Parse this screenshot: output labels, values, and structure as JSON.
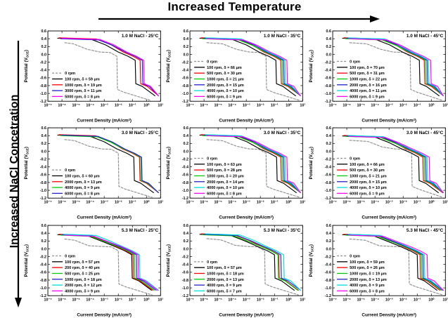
{
  "header": {
    "top_label": "Increased Temperature",
    "left_label": "Increased NaCl Concetration"
  },
  "axes": {
    "xlabel": "Current Density (mA/cm²)",
    "ylabel_pre": "Potential (V",
    "ylabel_sub": "SCE",
    "ylabel_post": ")",
    "x_tick_labels": [
      "10⁻⁷",
      "10⁻⁶",
      "10⁻⁵",
      "10⁻⁴",
      "10⁻³",
      "10⁻²",
      "10⁻¹",
      "10⁰",
      "10¹"
    ],
    "x_tick_exp": [
      -7,
      -6,
      -5,
      -4,
      -3,
      -2,
      -1,
      0,
      1
    ],
    "y_ticks": [
      0.6,
      0.4,
      0.2,
      0.0,
      -0.2,
      -0.4,
      -0.6,
      -0.8,
      -1.0,
      -1.2
    ],
    "xlim_log10": [
      -7,
      1
    ],
    "ylim": [
      -1.2,
      0.6
    ],
    "grid": false,
    "legend_position": "lower-left"
  },
  "chart_data": [
    {
      "type": "line",
      "title": "1.0 M NaCl - 25°C",
      "e_top": 0.4,
      "series": [
        {
          "label": "0 rpm",
          "rpm": 0,
          "color": "#909090",
          "dash": true,
          "drop_log10": -2.1
        },
        {
          "label": "100 rpm, δ = 59 μm",
          "rpm": 100,
          "delta_um": 59,
          "color": "#000000",
          "dash": false,
          "drop_log10": -0.8
        },
        {
          "label": "1000 rpm, δ = 19 μm",
          "rpm": 1000,
          "delta_um": 19,
          "color": "#ff0000",
          "dash": false,
          "drop_log10": -0.45
        },
        {
          "label": "3000 rpm, δ = 11 μm",
          "rpm": 3000,
          "delta_um": 11,
          "color": "#2222cc",
          "dash": false,
          "drop_log10": -0.3
        },
        {
          "label": "5000 rpm, δ = 8 μm",
          "rpm": 5000,
          "delta_um": 8,
          "color": "#ff00ff",
          "dash": false,
          "drop_log10": -0.2
        }
      ]
    },
    {
      "type": "line",
      "title": "1.0 M NaCl - 35°C",
      "e_top": 0.4,
      "series": [
        {
          "label": "0 rpm",
          "rpm": 0,
          "color": "#909090",
          "dash": true,
          "drop_log10": -1.6
        },
        {
          "label": "100 rpm, δ = 66 μm",
          "rpm": 100,
          "delta_um": 66,
          "color": "#000000",
          "dash": false,
          "drop_log10": -0.9
        },
        {
          "label": "500 rpm, δ = 30 μm",
          "rpm": 500,
          "delta_um": 30,
          "color": "#ff0000",
          "dash": false,
          "drop_log10": -0.55
        },
        {
          "label": "1000 rpm, δ = 21 μm",
          "rpm": 1000,
          "delta_um": 21,
          "color": "#00cc00",
          "dash": false,
          "drop_log10": -0.45
        },
        {
          "label": "2000 rpm, δ = 15 μm",
          "rpm": 2000,
          "delta_um": 15,
          "color": "#2222cc",
          "dash": false,
          "drop_log10": -0.35
        },
        {
          "label": "4000 rpm, δ = 10 μm",
          "rpm": 4000,
          "delta_um": 10,
          "color": "#00dddd",
          "dash": false,
          "drop_log10": -0.25
        },
        {
          "label": "6000 rpm, δ = 9 μm",
          "rpm": 6000,
          "delta_um": 9,
          "color": "#ff00ff",
          "dash": false,
          "drop_log10": -0.12
        }
      ]
    },
    {
      "type": "line",
      "title": "1.0 M NaCl - 45°C",
      "e_top": 0.4,
      "series": [
        {
          "label": "0 rpm",
          "rpm": 0,
          "color": "#909090",
          "dash": true,
          "drop_log10": -1.5
        },
        {
          "label": "100 rpm, δ = 70 μm",
          "rpm": 100,
          "delta_um": 70,
          "color": "#000000",
          "dash": false,
          "drop_log10": -0.85
        },
        {
          "label": "500 rpm, δ = 31 μm",
          "rpm": 500,
          "delta_um": 31,
          "color": "#ff0000",
          "dash": false,
          "drop_log10": -0.5
        },
        {
          "label": "1000 rpm, δ = 22 μm",
          "rpm": 1000,
          "delta_um": 22,
          "color": "#00cc00",
          "dash": false,
          "drop_log10": -0.4
        },
        {
          "label": "2000 rpm, δ = 16 μm",
          "rpm": 2000,
          "delta_um": 16,
          "color": "#2222cc",
          "dash": false,
          "drop_log10": -0.3
        },
        {
          "label": "4000 rpm, δ = 11 μm",
          "rpm": 4000,
          "delta_um": 11,
          "color": "#00dddd",
          "dash": false,
          "drop_log10": -0.2
        },
        {
          "label": "6000 rpm, δ = 9 μm",
          "rpm": 6000,
          "delta_um": 9,
          "color": "#ff00ff",
          "dash": false,
          "drop_log10": -0.05
        }
      ]
    },
    {
      "type": "line",
      "title": "3.0 M NaCl - 25°C",
      "e_top": 0.4,
      "series": [
        {
          "label": "0 rpm",
          "rpm": 0,
          "color": "#909090",
          "dash": true,
          "drop_log10": -2.0
        },
        {
          "label": "100 rpm, δ = 60 μm",
          "rpm": 100,
          "delta_um": 60,
          "color": "#000000",
          "dash": false,
          "drop_log10": -0.9
        },
        {
          "label": "2000 rpm, δ = 13 μm",
          "rpm": 2000,
          "delta_um": 13,
          "color": "#ff0000",
          "dash": false,
          "drop_log10": -0.5
        },
        {
          "label": "4000 rpm, δ = 9 μm",
          "rpm": 4000,
          "delta_um": 9,
          "color": "#00cc00",
          "dash": false,
          "drop_log10": -0.42
        },
        {
          "label": "6000 rpm, δ = 8 μm",
          "rpm": 6000,
          "delta_um": 8,
          "color": "#2222cc",
          "dash": false,
          "drop_log10": -0.35
        }
      ]
    },
    {
      "type": "line",
      "title": "3.0 M NaCl - 35°C",
      "e_top": 0.4,
      "series": [
        {
          "label": "0 rpm",
          "rpm": 0,
          "color": "#909090",
          "dash": true,
          "drop_log10": -1.6
        },
        {
          "label": "100 rpm, δ = 63 μm",
          "rpm": 100,
          "delta_um": 63,
          "color": "#000000",
          "dash": false,
          "drop_log10": -0.85
        },
        {
          "label": "500 rpm, δ = 28 μm",
          "rpm": 500,
          "delta_um": 28,
          "color": "#ff0000",
          "dash": false,
          "drop_log10": -0.55
        },
        {
          "label": "1000 rpm, δ = 20 μm",
          "rpm": 1000,
          "delta_um": 20,
          "color": "#00cc00",
          "dash": false,
          "drop_log10": -0.45
        },
        {
          "label": "2000 rpm, δ = 14 μm",
          "rpm": 2000,
          "delta_um": 14,
          "color": "#2222cc",
          "dash": false,
          "drop_log10": -0.35
        },
        {
          "label": "4000 rpm, δ = 10 μm",
          "rpm": 4000,
          "delta_um": 10,
          "color": "#00dddd",
          "dash": false,
          "drop_log10": -0.25
        },
        {
          "label": "6000 rpm, δ = 8 μm",
          "rpm": 6000,
          "delta_um": 8,
          "color": "#ff00ff",
          "dash": false,
          "drop_log10": -0.12
        }
      ]
    },
    {
      "type": "line",
      "title": "3.0 M NaCl - 45°C",
      "e_top": 0.38,
      "series": [
        {
          "label": "0 rpm",
          "rpm": 0,
          "color": "#909090",
          "dash": true,
          "drop_log10": -1.4
        },
        {
          "label": "100 rpm, δ = 66 μm",
          "rpm": 100,
          "delta_um": 66,
          "color": "#000000",
          "dash": false,
          "drop_log10": -0.9
        },
        {
          "label": "500 rpm, δ = 30 μm",
          "rpm": 500,
          "delta_um": 30,
          "color": "#ff0000",
          "dash": false,
          "drop_log10": -0.6
        },
        {
          "label": "1000 rpm, δ = 21 μm",
          "rpm": 1000,
          "delta_um": 21,
          "color": "#00cc00",
          "dash": false,
          "drop_log10": -0.5
        },
        {
          "label": "2000 rpm, δ = 15 μm",
          "rpm": 2000,
          "delta_um": 15,
          "color": "#2222cc",
          "dash": false,
          "drop_log10": -0.4
        },
        {
          "label": "4000 rpm, δ = 10 μm",
          "rpm": 4000,
          "delta_um": 10,
          "color": "#00dddd",
          "dash": false,
          "drop_log10": -0.3
        },
        {
          "label": "6000 rpm, δ = 9 μm",
          "rpm": 6000,
          "delta_um": 9,
          "color": "#ff00ff",
          "dash": false,
          "drop_log10": -0.15
        }
      ]
    },
    {
      "type": "line",
      "title": "5.3 M NaCl - 25°C",
      "e_top": 0.35,
      "series": [
        {
          "label": "0 rpm",
          "rpm": 0,
          "color": "#909090",
          "dash": true,
          "drop_log10": -2.0
        },
        {
          "label": "100 rpm, δ = 57 μm",
          "rpm": 100,
          "delta_um": 57,
          "color": "#000000",
          "dash": false,
          "drop_log10": -1.05
        },
        {
          "label": "200 rpm, δ = 40 μm",
          "rpm": 200,
          "delta_um": 40,
          "color": "#ff0000",
          "dash": false,
          "drop_log10": -0.95
        },
        {
          "label": "500 rpm, δ = 25 μm",
          "rpm": 500,
          "delta_um": 25,
          "color": "#00cc00",
          "dash": false,
          "drop_log10": -0.85
        },
        {
          "label": "1000 rpm, δ = 18 μm",
          "rpm": 1000,
          "delta_um": 18,
          "color": "#2222cc",
          "dash": false,
          "drop_log10": -0.72
        },
        {
          "label": "2000 rpm, δ = 12 μm",
          "rpm": 2000,
          "delta_um": 12,
          "color": "#00dddd",
          "dash": false,
          "drop_log10": -0.5
        },
        {
          "label": "4000 rpm, δ = 9 μm",
          "rpm": 4000,
          "delta_um": 9,
          "color": "#ff00ff",
          "dash": false,
          "drop_log10": -0.6
        }
      ]
    },
    {
      "type": "line",
      "title": "5.3 M NaCl - 35°C",
      "e_top": 0.36,
      "series": [
        {
          "label": "0 rpm",
          "rpm": 0,
          "color": "#909090",
          "dash": true,
          "drop_log10": -1.7
        },
        {
          "label": "100 rpm, δ = 57 μm",
          "rpm": 100,
          "delta_um": 57,
          "color": "#000000",
          "dash": false,
          "drop_log10": -1.0
        },
        {
          "label": "1000 rpm, δ = 18 μm",
          "rpm": 1000,
          "delta_um": 18,
          "color": "#ff0000",
          "dash": false,
          "drop_log10": -0.7
        },
        {
          "label": "2000 rpm, δ = 13 μm",
          "rpm": 2000,
          "delta_um": 13,
          "color": "#00cc00",
          "dash": false,
          "drop_log10": -0.75
        },
        {
          "label": "4000 rpm, δ = 9 μm",
          "rpm": 4000,
          "delta_um": 9,
          "color": "#2222cc",
          "dash": false,
          "drop_log10": -0.55
        },
        {
          "label": "6000 rpm, δ = 7 μm",
          "rpm": 6000,
          "delta_um": 7,
          "color": "#00dddd",
          "dash": false,
          "drop_log10": -0.35
        }
      ]
    },
    {
      "type": "line",
      "title": "5.3 M NaCl - 45°C",
      "e_top": 0.35,
      "series": [
        {
          "label": "0 rpm",
          "rpm": 0,
          "color": "#909090",
          "dash": true,
          "drop_log10": -1.6
        },
        {
          "label": "100 rpm, δ = 59 μm",
          "rpm": 100,
          "delta_um": 59,
          "color": "#000000",
          "dash": false,
          "drop_log10": -1.0
        },
        {
          "label": "500 rpm, δ = 26 μm",
          "rpm": 500,
          "delta_um": 26,
          "color": "#ff0000",
          "dash": false,
          "drop_log10": -0.8
        },
        {
          "label": "1000 rpm, δ = 19 μm",
          "rpm": 1000,
          "delta_um": 19,
          "color": "#00cc00",
          "dash": false,
          "drop_log10": -0.7
        },
        {
          "label": "2000 rpm, δ = 13 μm",
          "rpm": 2000,
          "delta_um": 13,
          "color": "#2222cc",
          "dash": false,
          "drop_log10": -0.6
        },
        {
          "label": "4000 rpm, δ = 9 μm",
          "rpm": 4000,
          "delta_um": 9,
          "color": "#00dddd",
          "dash": false,
          "drop_log10": -0.5
        },
        {
          "label": "6000 rpm, δ = 8 μm",
          "rpm": 6000,
          "delta_um": 8,
          "color": "#ff00ff",
          "dash": false,
          "drop_log10": -0.3
        }
      ]
    }
  ]
}
